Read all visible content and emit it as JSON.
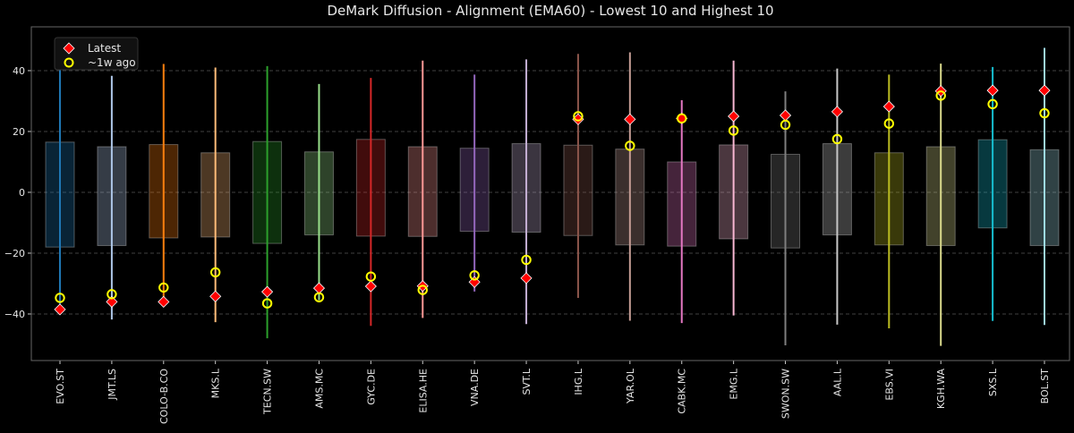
{
  "chart_data": {
    "type": "box-range",
    "title": "DeMark Diffusion - Alignment (EMA60) - Lowest 10 and Highest 10",
    "xlabel": "",
    "ylabel": "",
    "ylim": [
      -55.3,
      54.4
    ],
    "yticks": [
      -40,
      -20,
      0,
      20,
      40
    ],
    "ytick_labels": [
      "−40",
      "−20",
      "0",
      "20",
      "40"
    ],
    "grid": "horizontal dashed",
    "legend_position": "top-left",
    "legend": [
      {
        "label": "Latest",
        "marker": "diamond",
        "color": "#ff0000"
      },
      {
        "label": "~1w ago",
        "marker": "circle-open",
        "color": "#ffff00"
      }
    ],
    "categories": [
      "EVO.ST",
      "JMT.LS",
      "COLO-B.CO",
      "MKS.L",
      "TECN.SW",
      "AMS.MC",
      "GYC.DE",
      "ELISA.HE",
      "VNA.DE",
      "SVT.L",
      "IHG.L",
      "YAR.OL",
      "CABK.MC",
      "EMG.L",
      "SWON.SW",
      "AAL.L",
      "EBS.VI",
      "KGH.WA",
      "SXS.L",
      "BOL.ST"
    ],
    "colors": [
      "#1f77b4",
      "#aec7e8",
      "#ff7f0e",
      "#ffbb78",
      "#2ca02c",
      "#98df8a",
      "#d62728",
      "#ff9896",
      "#9467bd",
      "#c5b0d5",
      "#8c564b",
      "#c49c94",
      "#e377c2",
      "#f7b6d2",
      "#7f7f7f",
      "#c7c7c7",
      "#bcbd22",
      "#dbdb8d",
      "#17becf",
      "#9edae5"
    ],
    "range_max": [
      48,
      38.3,
      42.2,
      41,
      41.5,
      35.6,
      37.6,
      43.3,
      38.7,
      43.7,
      45.5,
      46,
      30.3,
      43.3,
      33.2,
      40.7,
      38.7,
      42.3,
      41.2,
      47.5
    ],
    "range_min": [
      -38,
      -41.8,
      -37,
      -42.7,
      -48,
      -35.5,
      -43.9,
      -41.3,
      -32.6,
      -43.3,
      -34.7,
      -42.2,
      -43,
      -40.5,
      -50.3,
      -43.5,
      -44.7,
      -50.5,
      -42.3,
      -43.6
    ],
    "box_upper": [
      16.5,
      15,
      15.7,
      13,
      16.7,
      13.3,
      17.4,
      15,
      14.5,
      16,
      15.5,
      14.2,
      10,
      15.6,
      12.5,
      16,
      13,
      15,
      17.3,
      14
    ],
    "box_lower": [
      -18,
      -17.5,
      -15,
      -14.7,
      -16.8,
      -14,
      -14.4,
      -14.5,
      -12.8,
      -13.1,
      -14.2,
      -17.3,
      -17.7,
      -15.3,
      -18.3,
      -14,
      -17.3,
      -17.5,
      -11.7,
      -17.5
    ],
    "series": [
      {
        "name": "Latest",
        "values": [
          -38.5,
          -36,
          -36,
          -34.2,
          -32.7,
          -31.5,
          -30.9,
          -30.8,
          -29.5,
          -28.2,
          24,
          24,
          24.3,
          25,
          25.3,
          26.5,
          28.2,
          33.3,
          33.5,
          33.5
        ]
      },
      {
        "name": "~1w ago",
        "values": [
          -34.7,
          -33.5,
          -31.3,
          -26.3,
          -36.5,
          -34.5,
          -27.7,
          -32.1,
          -27.3,
          -22.2,
          25,
          15.3,
          24.3,
          20.3,
          22.2,
          17.5,
          22.6,
          31.8,
          29,
          26
        ]
      }
    ]
  }
}
